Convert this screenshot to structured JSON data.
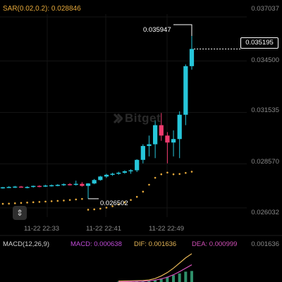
{
  "indicators": {
    "sar_label": "SAR(0.02,0.2): 0.028846",
    "macd_label": "MACD(12,26,9)",
    "macd_value": "MACD: 0.000638",
    "dif_value": "DIF: 0.001636",
    "dea_value": "DEA: 0.000999"
  },
  "price_axis": {
    "ticks": [
      "0.037037",
      "0.034500",
      "0.031535",
      "0.028570",
      "0.026032"
    ],
    "macd_tick": "0.001636"
  },
  "time_axis": {
    "ticks": [
      "11-22 22:33",
      "11-22 22:41",
      "11-22 22:49"
    ]
  },
  "markers": {
    "current_price": "0.035195",
    "high_label": "0.035947",
    "low_label": "0.026502"
  },
  "watermark": "Bitget",
  "icons": {
    "drag": "vertical-resize-icon",
    "watermark_logo": "bitget-logo-icon"
  },
  "colors": {
    "up": "#26c6da",
    "down": "#ef3b6e",
    "sar": "#e6a93b",
    "dif_line": "#e6b657",
    "dea_line": "#d14fb7"
  },
  "chart_data": {
    "type": "candlestick",
    "ylim": [
      0.0255,
      0.0372
    ],
    "candles": [
      {
        "o": 0.0272,
        "h": 0.02724,
        "l": 0.02714,
        "c": 0.02722
      },
      {
        "o": 0.02722,
        "h": 0.02728,
        "l": 0.02718,
        "c": 0.02724
      },
      {
        "o": 0.02724,
        "h": 0.0273,
        "l": 0.02718,
        "c": 0.02726
      },
      {
        "o": 0.02726,
        "h": 0.0273,
        "l": 0.0272,
        "c": 0.02722
      },
      {
        "o": 0.02722,
        "h": 0.02728,
        "l": 0.02716,
        "c": 0.02724
      },
      {
        "o": 0.02724,
        "h": 0.02732,
        "l": 0.0272,
        "c": 0.0273
      },
      {
        "o": 0.0273,
        "h": 0.02734,
        "l": 0.02722,
        "c": 0.02728
      },
      {
        "o": 0.02728,
        "h": 0.02736,
        "l": 0.02724,
        "c": 0.02732
      },
      {
        "o": 0.02732,
        "h": 0.02738,
        "l": 0.02726,
        "c": 0.02734
      },
      {
        "o": 0.02734,
        "h": 0.0274,
        "l": 0.02728,
        "c": 0.02736
      },
      {
        "o": 0.02736,
        "h": 0.02744,
        "l": 0.0273,
        "c": 0.0274
      },
      {
        "o": 0.0274,
        "h": 0.02746,
        "l": 0.02732,
        "c": 0.02738
      },
      {
        "o": 0.02738,
        "h": 0.0276,
        "l": 0.02732,
        "c": 0.02742
      },
      {
        "o": 0.02742,
        "h": 0.02752,
        "l": 0.02726,
        "c": 0.0273
      },
      {
        "o": 0.0273,
        "h": 0.02746,
        "l": 0.02656,
        "c": 0.02744
      },
      {
        "o": 0.02744,
        "h": 0.0277,
        "l": 0.0274,
        "c": 0.02764
      },
      {
        "o": 0.02764,
        "h": 0.02788,
        "l": 0.0276,
        "c": 0.02784
      },
      {
        "o": 0.02784,
        "h": 0.028,
        "l": 0.02776,
        "c": 0.02794
      },
      {
        "o": 0.02794,
        "h": 0.02806,
        "l": 0.02788,
        "c": 0.028
      },
      {
        "o": 0.028,
        "h": 0.02812,
        "l": 0.02794,
        "c": 0.02806
      },
      {
        "o": 0.02806,
        "h": 0.0282,
        "l": 0.028,
        "c": 0.02814
      },
      {
        "o": 0.02814,
        "h": 0.02826,
        "l": 0.028,
        "c": 0.0282
      },
      {
        "o": 0.0282,
        "h": 0.02884,
        "l": 0.0281,
        "c": 0.0288
      },
      {
        "o": 0.0288,
        "h": 0.0297,
        "l": 0.0286,
        "c": 0.0296
      },
      {
        "o": 0.0296,
        "h": 0.0302,
        "l": 0.029,
        "c": 0.0297
      },
      {
        "o": 0.0297,
        "h": 0.0311,
        "l": 0.0289,
        "c": 0.0308
      },
      {
        "o": 0.0308,
        "h": 0.0315,
        "l": 0.0299,
        "c": 0.0302
      },
      {
        "o": 0.0302,
        "h": 0.0304,
        "l": 0.0286,
        "c": 0.0298
      },
      {
        "o": 0.0298,
        "h": 0.0305,
        "l": 0.029,
        "c": 0.03
      },
      {
        "o": 0.03,
        "h": 0.0316,
        "l": 0.0289,
        "c": 0.0314
      },
      {
        "o": 0.0314,
        "h": 0.0343,
        "l": 0.0308,
        "c": 0.0342
      },
      {
        "o": 0.0342,
        "h": 0.03594,
        "l": 0.034,
        "c": 0.03519
      }
    ],
    "sar": [
      0.027,
      0.02701,
      0.02703,
      0.02705,
      0.02707,
      0.02709,
      0.02711,
      0.02713,
      0.02715,
      0.02717,
      0.02719,
      0.02722,
      0.02725,
      0.02728,
      0.02666,
      0.02668,
      0.02672,
      0.02678,
      0.02686,
      0.02696,
      0.02708,
      0.02722,
      0.0274,
      0.0277,
      0.0281,
      0.0285,
      0.0287,
      0.0288,
      0.0287,
      0.02872,
      0.02878,
      0.02885
    ],
    "macd_dif": [
      5e-05,
      6e-05,
      7e-05,
      8e-05,
      9e-05,
      0.00012,
      0.0002,
      0.00035,
      0.00055,
      0.0008,
      0.0011,
      0.0014,
      0.00164
    ],
    "macd_dea": [
      1e-05,
      2e-05,
      3e-05,
      4e-05,
      5e-05,
      7e-05,
      0.00011,
      0.00018,
      0.00028,
      0.00042,
      0.0006,
      0.0008,
      0.001
    ],
    "macd_hist": [
      3e-05,
      4e-05,
      4e-05,
      5e-05,
      6e-05,
      8e-05,
      0.00012,
      0.0002,
      0.0003,
      0.0004,
      0.0005,
      0.0006,
      0.00064
    ]
  }
}
